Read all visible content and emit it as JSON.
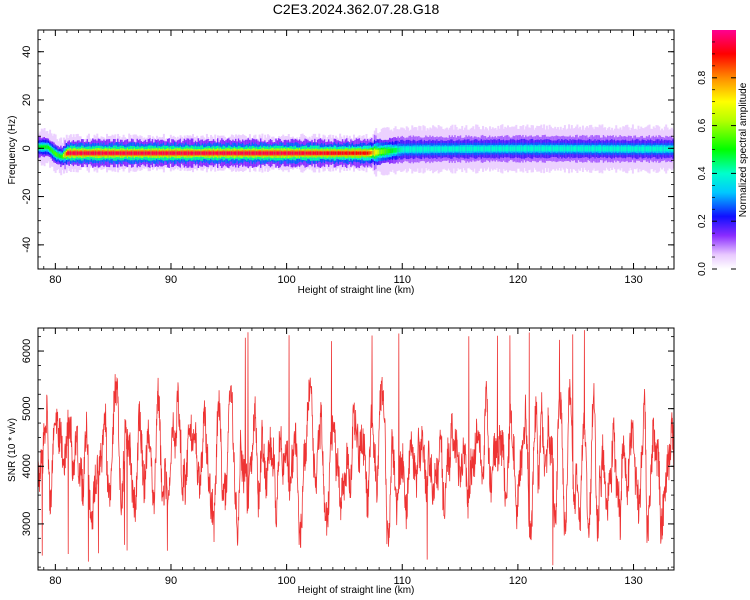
{
  "title": "C2E3.2024.362.07.28.G18",
  "chart_data": [
    {
      "type": "heatmap",
      "xlabel": "Height of straight line (km)",
      "ylabel": "Frequency (Hz)",
      "xlim": [
        78.5,
        133.5
      ],
      "ylim": [
        -50,
        49
      ],
      "xticks": [
        80,
        90,
        100,
        110,
        120,
        130
      ],
      "yticks": [
        -40,
        -20,
        0,
        20,
        40
      ],
      "grid": false,
      "colorbar": {
        "label": "Normalized spectral amplitude",
        "range": [
          0,
          1
        ],
        "ticks": [
          0.0,
          0.2,
          0.4,
          0.6,
          0.8
        ],
        "colormap": "rainbow-violet-to-red-magenta"
      },
      "ridge": {
        "x": [
          78.5,
          79.3,
          80.0,
          80.5,
          81.0,
          82,
          90,
          100,
          107,
          108,
          110,
          115,
          120,
          125,
          130,
          133
        ],
        "freq": [
          0.5,
          0.5,
          -2.5,
          -3.5,
          -2.0,
          -2.0,
          -2.0,
          -2.0,
          -2.0,
          -1.5,
          -0.5,
          -0.3,
          -0.2,
          -0.2,
          -0.3,
          -0.3
        ],
        "peak_amplitude": [
          0.5,
          0.5,
          0.55,
          0.5,
          0.95,
          0.95,
          0.95,
          0.95,
          0.9,
          0.6,
          0.4,
          0.4,
          0.4,
          0.4,
          0.4,
          0.4
        ]
      }
    },
    {
      "type": "line",
      "xlabel": "Height of straight line (km)",
      "ylabel": "SNR (10 * v/v)",
      "xlim": [
        78.5,
        133.5
      ],
      "ylim": [
        2200,
        6400
      ],
      "xticks": [
        80,
        90,
        100,
        110,
        120,
        130
      ],
      "yticks": [
        3000,
        4000,
        5000,
        6000
      ],
      "grid": false,
      "series": [
        {
          "color": "#ee3333",
          "x_range": [
            78.5,
            133.5
          ],
          "min": 2200,
          "max": 6400,
          "mean": 4000
        }
      ]
    }
  ]
}
